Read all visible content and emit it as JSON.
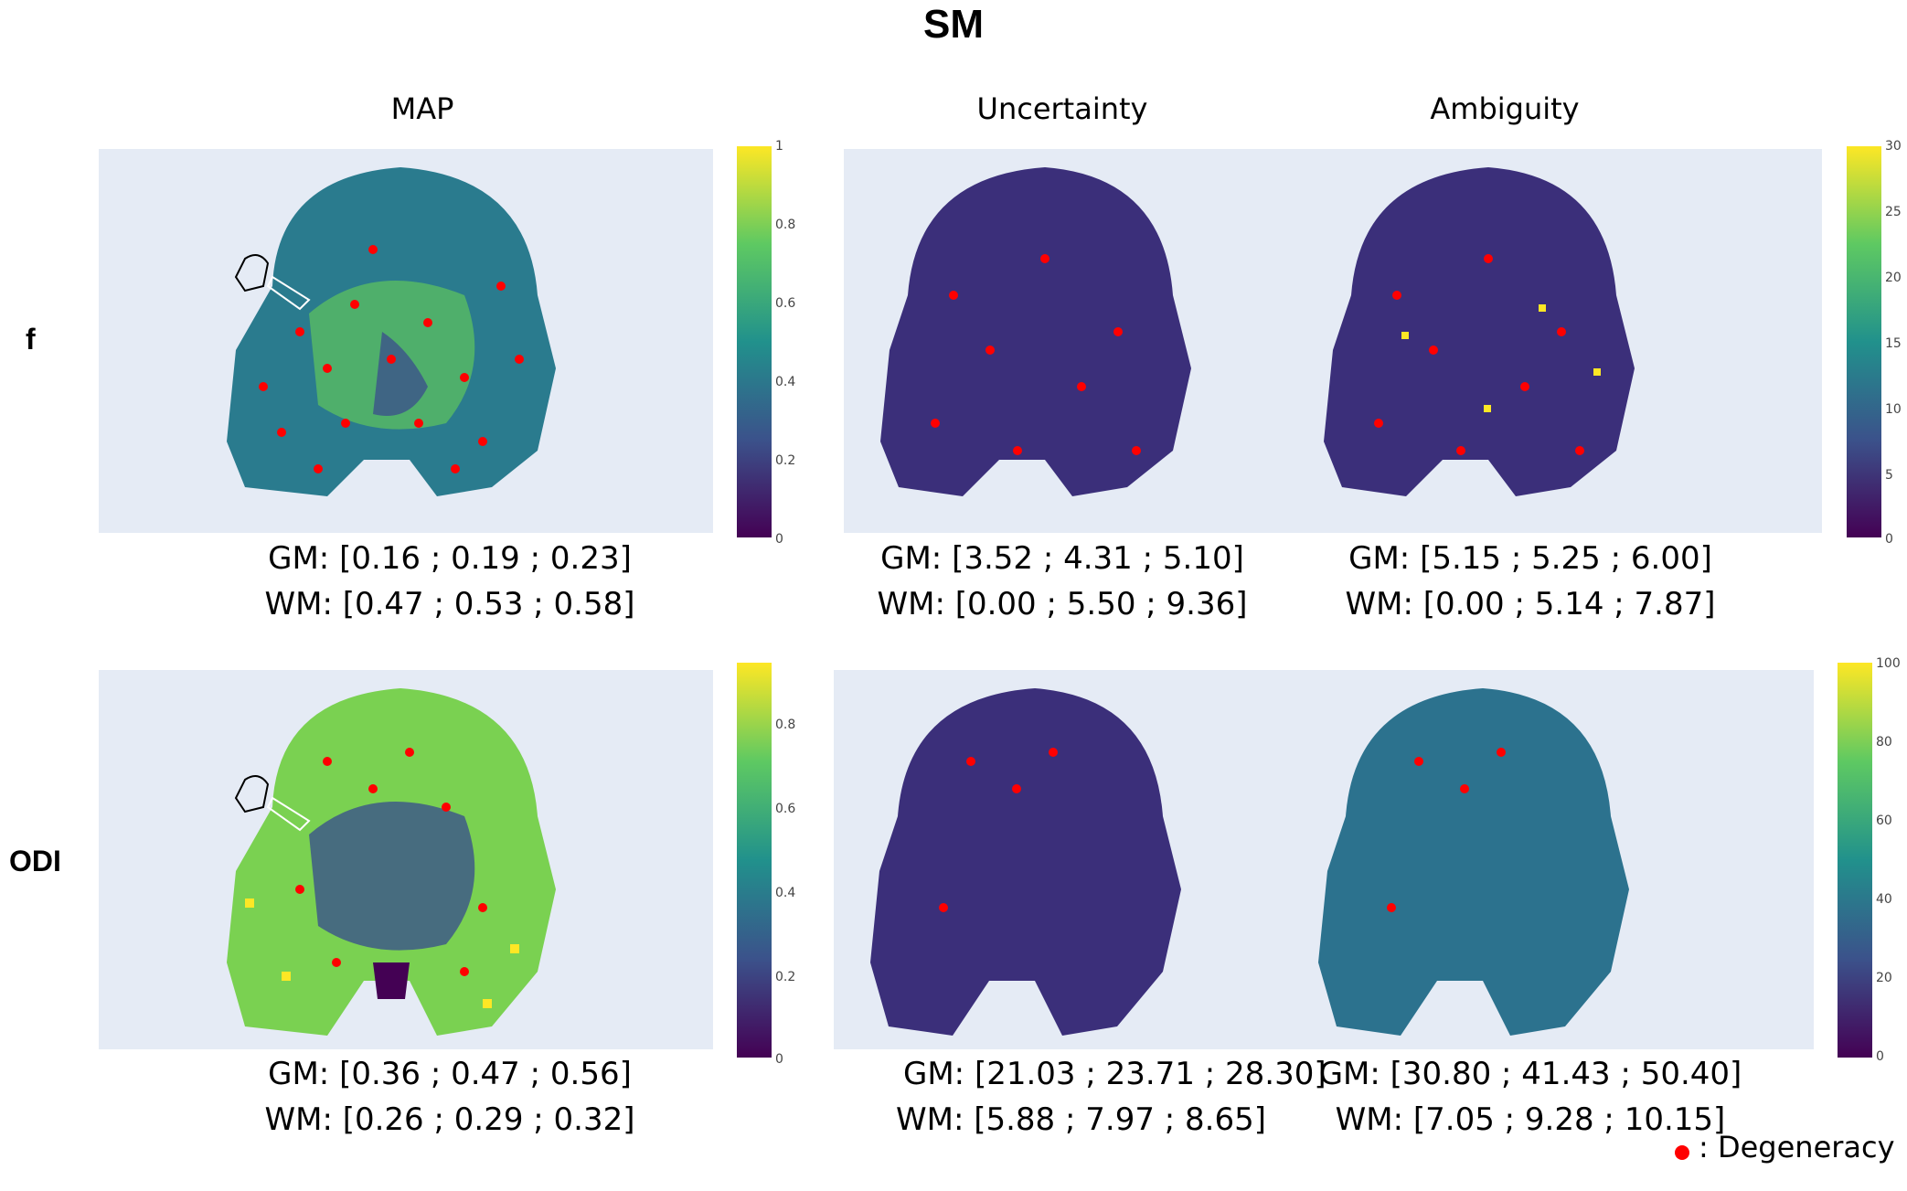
{
  "title": "SM",
  "columns": {
    "map": "MAP",
    "uncertainty": "Uncertainty",
    "ambiguity": "Ambiguity"
  },
  "rows": {
    "f": "f",
    "odi": "ODI"
  },
  "stats": {
    "f_map": {
      "gm": "GM: [0.16 ; 0.19 ; 0.23]",
      "wm": "WM: [0.47 ; 0.53 ; 0.58]"
    },
    "f_uncertainty": {
      "gm": "GM: [3.52 ; 4.31 ; 5.10]",
      "wm": "WM: [0.00 ; 5.50 ; 9.36]"
    },
    "f_ambiguity": {
      "gm": "GM: [5.15 ; 5.25 ; 6.00]",
      "wm": "WM: [0.00 ; 5.14 ; 7.87]"
    },
    "odi_map": {
      "gm": "GM: [0.36 ; 0.47 ; 0.56]",
      "wm": "WM: [0.26 ; 0.29 ; 0.32]"
    },
    "odi_uncertainty": {
      "gm": "GM: [21.03 ; 23.71 ; 28.30]",
      "wm": "WM: [5.88 ; 7.97 ; 8.65]"
    },
    "odi_ambiguity": {
      "gm": "GM: [30.80 ; 41.43 ; 50.40]",
      "wm": "WM: [7.05 ; 9.28 ; 10.15]"
    }
  },
  "colorbars": {
    "f_map": {
      "ticks": [
        "1",
        "0.8",
        "0.6",
        "0.4",
        "0.2",
        "0"
      ]
    },
    "f_uncertainty_ambiguity": {
      "ticks": [
        "30",
        "25",
        "20",
        "15",
        "10",
        "5",
        "0"
      ]
    },
    "odi_map": {
      "ticks": [
        "0.8",
        "0.6",
        "0.4",
        "0.2",
        "0"
      ]
    },
    "odi_uncertainty_ambiguity": {
      "ticks": [
        "100",
        "80",
        "60",
        "40",
        "20",
        "0"
      ]
    }
  },
  "legend": {
    "marker_label": ": Degeneracy"
  },
  "colors": {
    "degeneracy": "#ff0000",
    "panel_bg": "#e5ebf5",
    "viridis_low": "#440154",
    "viridis_high": "#fde725"
  }
}
